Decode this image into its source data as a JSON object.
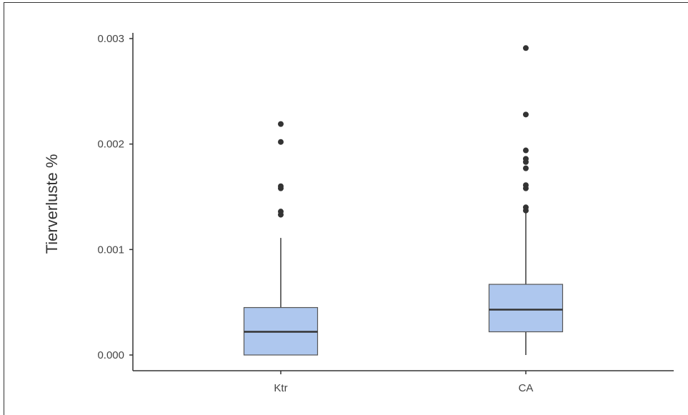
{
  "chart_data": {
    "type": "box",
    "ylabel": "Tierverluste %",
    "xlabel": "",
    "ylim": [
      -0.00011,
      0.003
    ],
    "y_ticks": [
      0.0,
      0.001,
      0.002,
      0.003
    ],
    "y_tick_labels": [
      "0.000",
      "0.001",
      "0.002",
      "0.003"
    ],
    "categories": [
      "Ktr",
      "CA"
    ],
    "box_color": "#aec7ee",
    "grid": false,
    "boxes": [
      {
        "category": "Ktr",
        "whisker_low": 0.0,
        "q1": 0.0,
        "median": 0.00022,
        "q3": 0.00045,
        "whisker_high": 0.00111,
        "outliers": [
          0.00133,
          0.00136,
          0.00158,
          0.0016,
          0.00202,
          0.00219
        ]
      },
      {
        "category": "CA",
        "whisker_low": 0.0,
        "q1": 0.00022,
        "median": 0.00043,
        "q3": 0.00067,
        "whisker_high": 0.00136,
        "outliers": [
          0.00137,
          0.0014,
          0.00158,
          0.00161,
          0.00177,
          0.00183,
          0.00186,
          0.00194,
          0.00228,
          0.00291
        ]
      }
    ]
  }
}
